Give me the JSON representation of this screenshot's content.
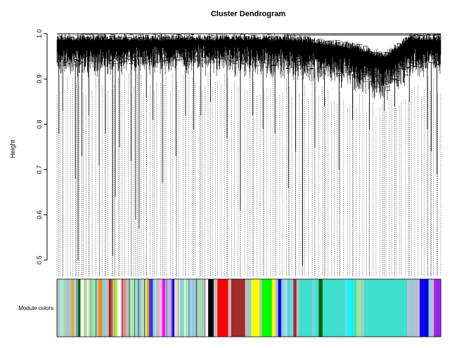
{
  "chart_data": {
    "type": "dendrogram",
    "title": "Cluster Dendrogram",
    "ylabel": "Height",
    "xlabel": "",
    "ylim": [
      0.5,
      1.0
    ],
    "yticks": [
      "0.5",
      "0.6",
      "0.7",
      "0.8",
      "0.9",
      "1.0"
    ],
    "color_bar_label": "Module colors",
    "leaf_count_estimate": 3000,
    "height_profile": [
      {
        "pos": 0.0,
        "min": 0.93,
        "max": 1.0
      },
      {
        "pos": 0.15,
        "min": 0.93,
        "max": 1.0
      },
      {
        "pos": 0.3,
        "min": 0.94,
        "max": 1.0
      },
      {
        "pos": 0.5,
        "min": 0.93,
        "max": 1.0
      },
      {
        "pos": 0.62,
        "min": 0.92,
        "max": 1.0
      },
      {
        "pos": 0.7,
        "min": 0.91,
        "max": 0.99
      },
      {
        "pos": 0.78,
        "min": 0.9,
        "max": 0.98
      },
      {
        "pos": 0.85,
        "min": 0.87,
        "max": 0.96
      },
      {
        "pos": 0.92,
        "min": 0.92,
        "max": 1.0
      },
      {
        "pos": 1.0,
        "min": 0.93,
        "max": 1.0
      }
    ],
    "deep_leaves": [
      {
        "pos": 0.005,
        "h": 0.78
      },
      {
        "pos": 0.015,
        "h": 0.83
      },
      {
        "pos": 0.048,
        "h": 0.68
      },
      {
        "pos": 0.055,
        "h": 0.5
      },
      {
        "pos": 0.065,
        "h": 0.73
      },
      {
        "pos": 0.083,
        "h": 0.82
      },
      {
        "pos": 0.11,
        "h": 0.71
      },
      {
        "pos": 0.126,
        "h": 0.78
      },
      {
        "pos": 0.145,
        "h": 0.51
      },
      {
        "pos": 0.152,
        "h": 0.64
      },
      {
        "pos": 0.163,
        "h": 0.75
      },
      {
        "pos": 0.193,
        "h": 0.72
      },
      {
        "pos": 0.205,
        "h": 0.59
      },
      {
        "pos": 0.214,
        "h": 0.57
      },
      {
        "pos": 0.233,
        "h": 0.86
      },
      {
        "pos": 0.25,
        "h": 0.81
      },
      {
        "pos": 0.275,
        "h": 0.67
      },
      {
        "pos": 0.31,
        "h": 0.73
      },
      {
        "pos": 0.335,
        "h": 0.82
      },
      {
        "pos": 0.356,
        "h": 0.79
      },
      {
        "pos": 0.375,
        "h": 0.82
      },
      {
        "pos": 0.4,
        "h": 0.85
      },
      {
        "pos": 0.443,
        "h": 0.77
      },
      {
        "pos": 0.478,
        "h": 0.61
      },
      {
        "pos": 0.51,
        "h": 0.82
      },
      {
        "pos": 0.537,
        "h": 0.79
      },
      {
        "pos": 0.568,
        "h": 0.78
      },
      {
        "pos": 0.603,
        "h": 0.66
      },
      {
        "pos": 0.622,
        "h": 0.74
      },
      {
        "pos": 0.64,
        "h": 0.49
      },
      {
        "pos": 0.672,
        "h": 0.75
      },
      {
        "pos": 0.697,
        "h": 0.84
      },
      {
        "pos": 0.735,
        "h": 0.7
      },
      {
        "pos": 0.77,
        "h": 0.81
      },
      {
        "pos": 0.814,
        "h": 0.79
      },
      {
        "pos": 0.853,
        "h": 0.83
      },
      {
        "pos": 0.88,
        "h": 0.84
      },
      {
        "pos": 0.918,
        "h": 0.85
      },
      {
        "pos": 0.965,
        "h": 0.79
      },
      {
        "pos": 0.975,
        "h": 0.74
      },
      {
        "pos": 0.99,
        "h": 0.69
      }
    ],
    "module_colors": [
      {
        "start": 0.0,
        "end": 0.008,
        "color": "#bebebe"
      },
      {
        "start": 0.008,
        "end": 0.015,
        "color": "#87ceeb"
      },
      {
        "start": 0.015,
        "end": 0.022,
        "color": "#90ee90"
      },
      {
        "start": 0.022,
        "end": 0.03,
        "color": "#bebebe"
      },
      {
        "start": 0.03,
        "end": 0.038,
        "color": "#87ceeb"
      },
      {
        "start": 0.038,
        "end": 0.045,
        "color": "#ffa500"
      },
      {
        "start": 0.045,
        "end": 0.055,
        "color": "#add8e6"
      },
      {
        "start": 0.055,
        "end": 0.062,
        "color": "#006400"
      },
      {
        "start": 0.062,
        "end": 0.07,
        "color": "#ffffe0"
      },
      {
        "start": 0.07,
        "end": 0.078,
        "color": "#bebebe"
      },
      {
        "start": 0.078,
        "end": 0.09,
        "color": "#ffffe0"
      },
      {
        "start": 0.09,
        "end": 0.1,
        "color": "#90ee90"
      },
      {
        "start": 0.1,
        "end": 0.108,
        "color": "#add8e6"
      },
      {
        "start": 0.108,
        "end": 0.118,
        "color": "#ff8c00"
      },
      {
        "start": 0.118,
        "end": 0.128,
        "color": "#87ceeb"
      },
      {
        "start": 0.128,
        "end": 0.135,
        "color": "#bebebe"
      },
      {
        "start": 0.135,
        "end": 0.145,
        "color": "#a52a2a"
      },
      {
        "start": 0.145,
        "end": 0.152,
        "color": "#ffa500"
      },
      {
        "start": 0.152,
        "end": 0.158,
        "color": "#90ee90"
      },
      {
        "start": 0.158,
        "end": 0.168,
        "color": "#ffffe0"
      },
      {
        "start": 0.168,
        "end": 0.18,
        "color": "#f08080"
      },
      {
        "start": 0.18,
        "end": 0.188,
        "color": "#bebebe"
      },
      {
        "start": 0.188,
        "end": 0.198,
        "color": "#90ee90"
      },
      {
        "start": 0.198,
        "end": 0.208,
        "color": "#98fb98"
      },
      {
        "start": 0.208,
        "end": 0.215,
        "color": "#87ceeb"
      },
      {
        "start": 0.215,
        "end": 0.222,
        "color": "#bebebe"
      },
      {
        "start": 0.222,
        "end": 0.232,
        "color": "#90ee90"
      },
      {
        "start": 0.232,
        "end": 0.24,
        "color": "#ffa500"
      },
      {
        "start": 0.24,
        "end": 0.25,
        "color": "#0000ff"
      },
      {
        "start": 0.25,
        "end": 0.258,
        "color": "#87ceeb"
      },
      {
        "start": 0.258,
        "end": 0.266,
        "color": "#bebebe"
      },
      {
        "start": 0.266,
        "end": 0.274,
        "color": "#ffc0cb"
      },
      {
        "start": 0.274,
        "end": 0.282,
        "color": "#ff00ff"
      },
      {
        "start": 0.282,
        "end": 0.29,
        "color": "#add8e6"
      },
      {
        "start": 0.29,
        "end": 0.298,
        "color": "#dda0dd"
      },
      {
        "start": 0.298,
        "end": 0.306,
        "color": "#0000ff"
      },
      {
        "start": 0.306,
        "end": 0.314,
        "color": "#f5deb3"
      },
      {
        "start": 0.314,
        "end": 0.322,
        "color": "#bebebe"
      },
      {
        "start": 0.322,
        "end": 0.33,
        "color": "#87ceeb"
      },
      {
        "start": 0.33,
        "end": 0.34,
        "color": "#90ee90"
      },
      {
        "start": 0.34,
        "end": 0.35,
        "color": "#add8e6"
      },
      {
        "start": 0.35,
        "end": 0.36,
        "color": "#87ceeb"
      },
      {
        "start": 0.36,
        "end": 0.368,
        "color": "#bebebe"
      },
      {
        "start": 0.368,
        "end": 0.376,
        "color": "#90ee90"
      },
      {
        "start": 0.376,
        "end": 0.384,
        "color": "#bebebe"
      },
      {
        "start": 0.384,
        "end": 0.394,
        "color": "#ffffff"
      },
      {
        "start": 0.394,
        "end": 0.408,
        "color": "#000000"
      },
      {
        "start": 0.408,
        "end": 0.418,
        "color": "#bebebe"
      },
      {
        "start": 0.418,
        "end": 0.446,
        "color": "#ff0000"
      },
      {
        "start": 0.446,
        "end": 0.454,
        "color": "#bebebe"
      },
      {
        "start": 0.454,
        "end": 0.49,
        "color": "#a52a2a"
      },
      {
        "start": 0.49,
        "end": 0.498,
        "color": "#bebebe"
      },
      {
        "start": 0.498,
        "end": 0.506,
        "color": "#87ceeb"
      },
      {
        "start": 0.506,
        "end": 0.528,
        "color": "#ffff00"
      },
      {
        "start": 0.528,
        "end": 0.534,
        "color": "#bebebe"
      },
      {
        "start": 0.534,
        "end": 0.56,
        "color": "#00ff00"
      },
      {
        "start": 0.56,
        "end": 0.568,
        "color": "#ffff00"
      },
      {
        "start": 0.568,
        "end": 0.576,
        "color": "#bebebe"
      },
      {
        "start": 0.576,
        "end": 0.584,
        "color": "#0000ff"
      },
      {
        "start": 0.584,
        "end": 0.592,
        "color": "#87ceeb"
      },
      {
        "start": 0.592,
        "end": 0.6,
        "color": "#add8e6"
      },
      {
        "start": 0.6,
        "end": 0.608,
        "color": "#40e0d0"
      },
      {
        "start": 0.608,
        "end": 0.616,
        "color": "#87ceeb"
      },
      {
        "start": 0.616,
        "end": 0.624,
        "color": "#a52a2a"
      },
      {
        "start": 0.624,
        "end": 0.63,
        "color": "#bebebe"
      },
      {
        "start": 0.63,
        "end": 0.666,
        "color": "#40e0d0"
      },
      {
        "start": 0.666,
        "end": 0.672,
        "color": "#87ceeb"
      },
      {
        "start": 0.672,
        "end": 0.682,
        "color": "#40e0d0"
      },
      {
        "start": 0.682,
        "end": 0.692,
        "color": "#006400"
      },
      {
        "start": 0.692,
        "end": 0.75,
        "color": "#40e0d0"
      },
      {
        "start": 0.75,
        "end": 0.756,
        "color": "#87ceeb"
      },
      {
        "start": 0.756,
        "end": 0.768,
        "color": "#00ffff"
      },
      {
        "start": 0.768,
        "end": 0.78,
        "color": "#40e0d0"
      },
      {
        "start": 0.78,
        "end": 0.792,
        "color": "#90ee90"
      },
      {
        "start": 0.792,
        "end": 0.8,
        "color": "#bebebe"
      },
      {
        "start": 0.8,
        "end": 0.912,
        "color": "#40e0d0"
      },
      {
        "start": 0.912,
        "end": 0.92,
        "color": "#bebebe"
      },
      {
        "start": 0.92,
        "end": 0.93,
        "color": "#87ceeb"
      },
      {
        "start": 0.93,
        "end": 0.945,
        "color": "#bebebe"
      },
      {
        "start": 0.945,
        "end": 0.96,
        "color": "#0000ff"
      },
      {
        "start": 0.96,
        "end": 0.968,
        "color": "#0000cd"
      },
      {
        "start": 0.968,
        "end": 0.975,
        "color": "#87ceeb"
      },
      {
        "start": 0.975,
        "end": 0.982,
        "color": "#bebebe"
      },
      {
        "start": 0.982,
        "end": 1.0,
        "color": "#a020f0"
      }
    ]
  }
}
